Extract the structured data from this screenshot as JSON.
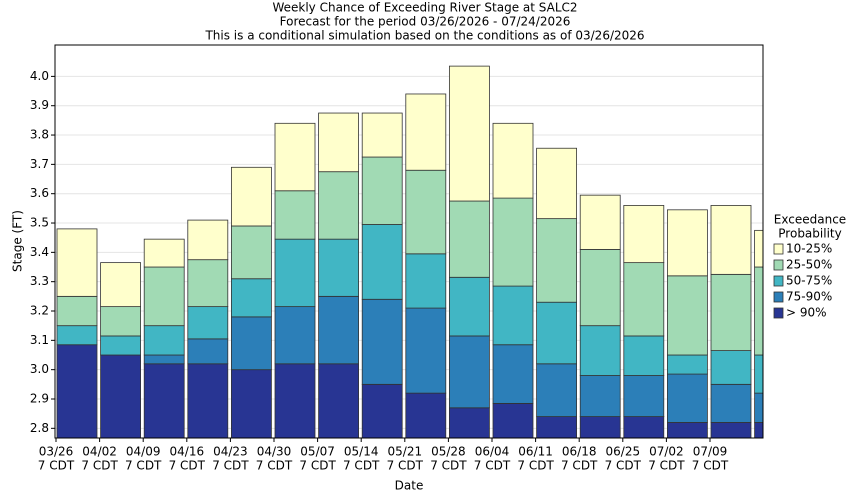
{
  "chart_data": {
    "type": "bar",
    "title": "Weekly Chance of Exceeding River Stage at SALC2",
    "subtitle": "Forecast for the period 03/26/2026 - 07/24/2026",
    "note": "This is a conditional simulation based on the conditions as of 03/26/2026",
    "y_label": "Stage (FT)",
    "x_label": "Date",
    "legend_title": [
      "Exceedance",
      "Probability"
    ],
    "categories": [
      [
        "03/26",
        "7 CDT"
      ],
      [
        "04/02",
        "7 CDT"
      ],
      [
        "04/09",
        "7 CDT"
      ],
      [
        "04/16",
        "7 CDT"
      ],
      [
        "04/23",
        "7 CDT"
      ],
      [
        "04/30",
        "7 CDT"
      ],
      [
        "05/07",
        "7 CDT"
      ],
      [
        "05/14",
        "7 CDT"
      ],
      [
        "05/21",
        "7 CDT"
      ],
      [
        "05/28",
        "7 CDT"
      ],
      [
        "06/04",
        "7 CDT"
      ],
      [
        "06/11",
        "7 CDT"
      ],
      [
        "06/18",
        "7 CDT"
      ],
      [
        "06/25",
        "7 CDT"
      ],
      [
        "07/02",
        "7 CDT"
      ],
      [
        "07/09",
        "7 CDT"
      ],
      null
    ],
    "series": [
      {
        "name": "> 90%",
        "color": "#283593",
        "values": [
          3.085,
          3.05,
          3.02,
          3.02,
          3.0,
          3.02,
          3.02,
          2.95,
          2.92,
          2.87,
          2.885,
          2.84,
          2.84,
          2.84,
          2.82,
          2.82,
          2.82
        ]
      },
      {
        "name": "75-90%",
        "color": "#2c7fb8",
        "values": [
          3.085,
          3.05,
          3.05,
          3.105,
          3.18,
          3.215,
          3.25,
          3.24,
          3.21,
          3.115,
          3.085,
          3.02,
          2.98,
          2.98,
          2.985,
          2.95,
          2.92
        ]
      },
      {
        "name": "50-75%",
        "color": "#41b6c4",
        "values": [
          3.15,
          3.115,
          3.15,
          3.215,
          3.31,
          3.445,
          3.445,
          3.495,
          3.395,
          3.315,
          3.285,
          3.23,
          3.15,
          3.115,
          3.05,
          3.065,
          3.05
        ]
      },
      {
        "name": "25-50%",
        "color": "#a1dab4",
        "values": [
          3.25,
          3.215,
          3.35,
          3.375,
          3.49,
          3.61,
          3.675,
          3.725,
          3.68,
          3.575,
          3.585,
          3.515,
          3.41,
          3.365,
          3.32,
          3.325,
          3.35
        ]
      },
      {
        "name": "10-25%",
        "color": "#ffffcc",
        "values": [
          3.48,
          3.365,
          3.445,
          3.51,
          3.69,
          3.84,
          3.875,
          3.875,
          3.94,
          4.035,
          3.84,
          3.755,
          3.595,
          3.56,
          3.545,
          3.56,
          3.475
        ]
      }
    ],
    "ylim": [
      2.767,
      4.107
    ],
    "yticks": [
      2.8,
      2.9,
      {
        "value": 3.0,
        "label": "3.0"
      },
      3.1,
      3.2,
      3.3,
      3.4,
      3.5,
      3.6,
      3.7,
      3.8,
      3.9,
      {
        "value": 4.0,
        "label": "4.0"
      }
    ],
    "grid": true
  }
}
